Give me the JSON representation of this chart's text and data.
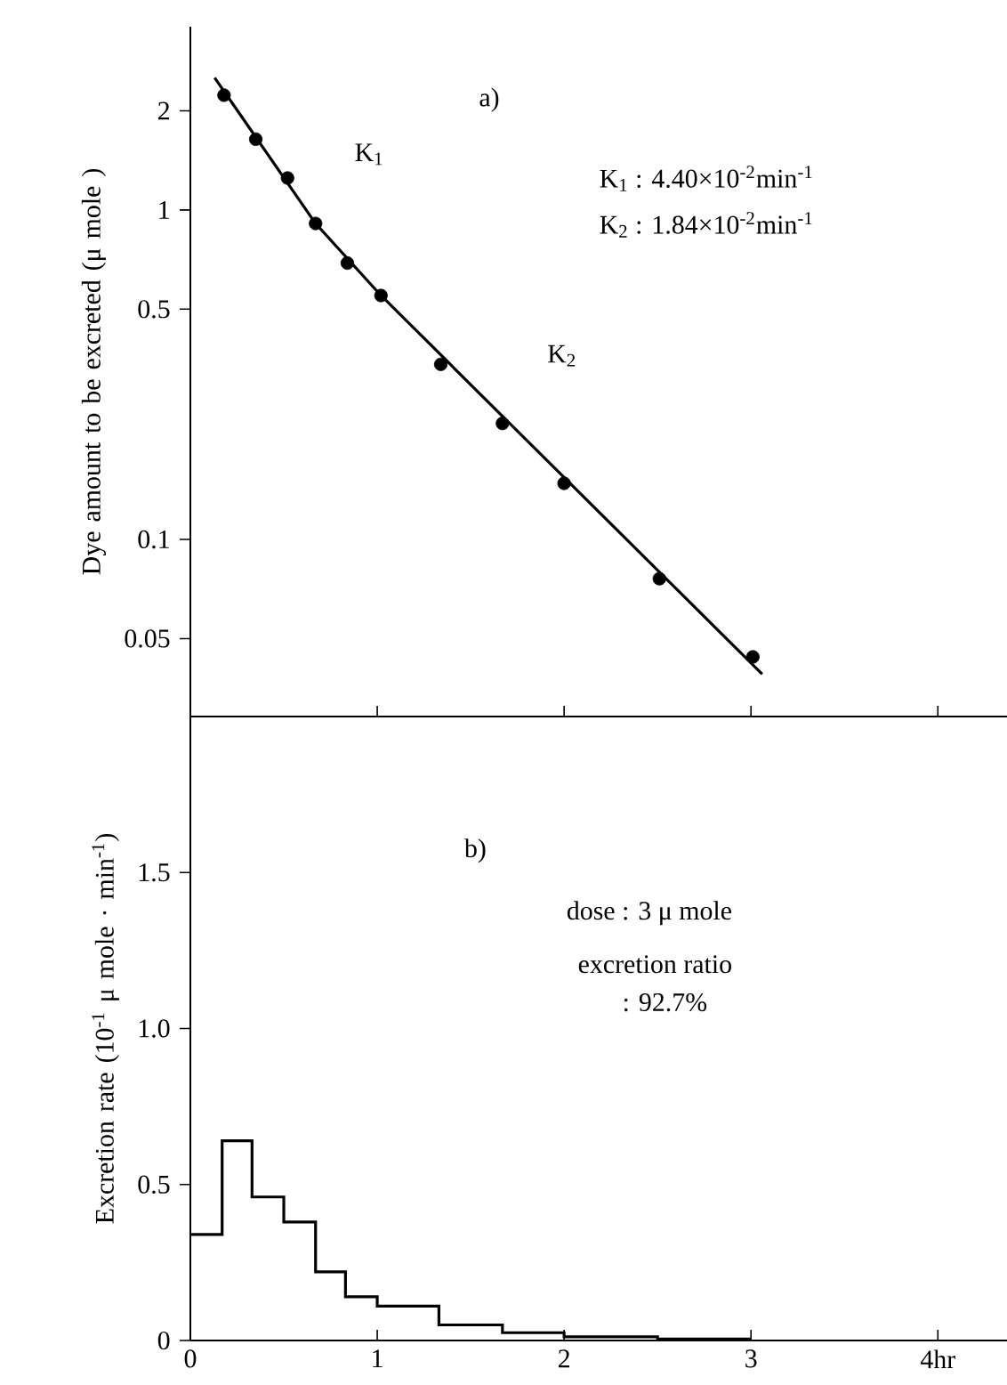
{
  "chart_data": [
    {
      "type": "scatter",
      "log": "y",
      "ylabel": "Dye amount to be excreted (μ mole )",
      "annotations": [
        "a)",
        "K$_{1}$",
        "K$_{1}$ : 4.40×10$^{-2}$min$^{-1}$",
        "K$_{2}$ : 1.84×10$^{-2}$min$^{-1}$",
        "K$_{2}$"
      ],
      "xlim": [
        0,
        4.37
      ],
      "xticks": [
        0,
        1,
        2,
        3,
        4
      ],
      "ylim": [
        0.029,
        3.6
      ],
      "yticks": [
        0.05,
        0.1,
        0.5,
        1,
        2
      ],
      "tick_labels": "y",
      "series": [
        {
          "type": "scatter",
          "marker": "circle",
          "color": "#000000",
          "x": [
            0.18,
            0.35,
            0.52,
            0.67,
            0.84,
            1.02,
            1.34,
            1.67,
            2.0,
            2.51,
            3.01
          ],
          "values": [
            2.23,
            1.64,
            1.25,
            0.91,
            0.69,
            0.55,
            0.34,
            0.225,
            0.148,
            0.076,
            0.044
          ]
        },
        {
          "type": "line",
          "marker": "none",
          "color": "#000000",
          "x": [
            0.13,
            0.67,
            1.02,
            3.06
          ],
          "values": [
            2.52,
            0.91,
            0.55,
            0.039
          ]
        }
      ]
    },
    {
      "type": "histogram",
      "ylabel": "Excretion rate (10$^{-1}$ μ mole · min$^{-1}$)",
      "annotations": [
        "b)",
        "dose : 3 μ mole",
        "excretion ratio",
        ": 92.7%"
      ],
      "xlim": [
        0,
        4.37
      ],
      "xticks": [
        0,
        1,
        2,
        3,
        {
          "value": 4,
          "label": "4hr"
        }
      ],
      "ylim": [
        0,
        2.0
      ],
      "yticks": [
        0,
        0.5,
        {
          "value": 1,
          "label": "1.0"
        },
        1.5
      ],
      "color": "#000000",
      "bins": [
        0,
        0.17,
        0.33,
        0.5,
        0.67,
        0.83,
        1.0,
        1.33,
        1.67,
        2.0,
        2.5,
        3.0
      ],
      "values": [
        0.34,
        0.64,
        0.46,
        0.38,
        0.22,
        0.14,
        0.11,
        0.05,
        0.025,
        0.012,
        0.005
      ]
    }
  ]
}
